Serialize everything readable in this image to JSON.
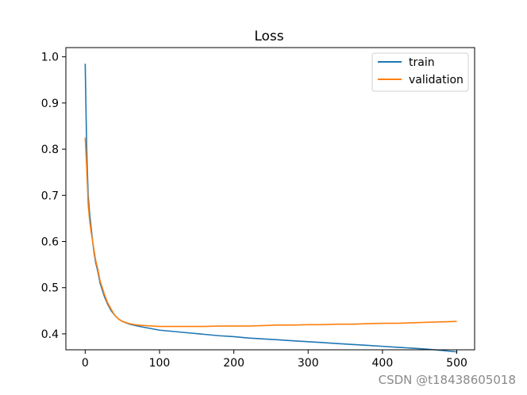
{
  "chart_data": {
    "type": "line",
    "title": "Loss",
    "xlabel": "",
    "ylabel": "",
    "xlim": [
      -26,
      524
    ],
    "ylim": [
      0.3655,
      1.02
    ],
    "xticks": [
      0,
      100,
      200,
      300,
      400,
      500
    ],
    "yticks": [
      0.4,
      0.5,
      0.6,
      0.7,
      0.8,
      0.9,
      1.0
    ],
    "ytick_labels": [
      "0.4",
      "0.5",
      "0.6",
      "0.7",
      "0.8",
      "0.9",
      "1.0"
    ],
    "grid": false,
    "legend": "upper right",
    "series": [
      {
        "name": "train",
        "color": "#1f77b4",
        "points": [
          [
            0,
            0.985
          ],
          [
            2,
            0.8
          ],
          [
            4,
            0.7
          ],
          [
            6,
            0.66
          ],
          [
            8,
            0.63
          ],
          [
            10,
            0.6
          ],
          [
            12,
            0.575
          ],
          [
            14,
            0.555
          ],
          [
            17,
            0.535
          ],
          [
            20,
            0.51
          ],
          [
            23,
            0.495
          ],
          [
            26,
            0.48
          ],
          [
            30,
            0.465
          ],
          [
            35,
            0.45
          ],
          [
            40,
            0.44
          ],
          [
            45,
            0.432
          ],
          [
            50,
            0.427
          ],
          [
            60,
            0.421
          ],
          [
            70,
            0.417
          ],
          [
            80,
            0.414
          ],
          [
            90,
            0.411
          ],
          [
            100,
            0.408
          ],
          [
            120,
            0.405
          ],
          [
            140,
            0.402
          ],
          [
            160,
            0.399
          ],
          [
            180,
            0.396
          ],
          [
            200,
            0.394
          ],
          [
            220,
            0.391
          ],
          [
            240,
            0.389
          ],
          [
            260,
            0.387
          ],
          [
            280,
            0.385
          ],
          [
            300,
            0.383
          ],
          [
            320,
            0.381
          ],
          [
            340,
            0.379
          ],
          [
            360,
            0.377
          ],
          [
            380,
            0.375
          ],
          [
            400,
            0.373
          ],
          [
            420,
            0.371
          ],
          [
            440,
            0.369
          ],
          [
            460,
            0.367
          ],
          [
            480,
            0.364
          ],
          [
            500,
            0.361
          ]
        ]
      },
      {
        "name": "validation",
        "color": "#ff7f0e",
        "points": [
          [
            0,
            0.825
          ],
          [
            2,
            0.76
          ],
          [
            4,
            0.68
          ],
          [
            6,
            0.645
          ],
          [
            8,
            0.62
          ],
          [
            10,
            0.6
          ],
          [
            12,
            0.58
          ],
          [
            14,
            0.56
          ],
          [
            17,
            0.54
          ],
          [
            20,
            0.515
          ],
          [
            23,
            0.5
          ],
          [
            26,
            0.485
          ],
          [
            30,
            0.468
          ],
          [
            35,
            0.453
          ],
          [
            40,
            0.44
          ],
          [
            45,
            0.432
          ],
          [
            50,
            0.427
          ],
          [
            60,
            0.422
          ],
          [
            70,
            0.419
          ],
          [
            80,
            0.418
          ],
          [
            90,
            0.417
          ],
          [
            100,
            0.416
          ],
          [
            120,
            0.416
          ],
          [
            140,
            0.416
          ],
          [
            160,
            0.416
          ],
          [
            180,
            0.417
          ],
          [
            200,
            0.417
          ],
          [
            220,
            0.417
          ],
          [
            240,
            0.418
          ],
          [
            260,
            0.419
          ],
          [
            280,
            0.419
          ],
          [
            300,
            0.42
          ],
          [
            320,
            0.42
          ],
          [
            340,
            0.421
          ],
          [
            360,
            0.421
          ],
          [
            380,
            0.422
          ],
          [
            400,
            0.423
          ],
          [
            420,
            0.423
          ],
          [
            440,
            0.424
          ],
          [
            460,
            0.425
          ],
          [
            480,
            0.426
          ],
          [
            500,
            0.427
          ]
        ]
      }
    ]
  },
  "watermark": "CSDN @t18438605018"
}
